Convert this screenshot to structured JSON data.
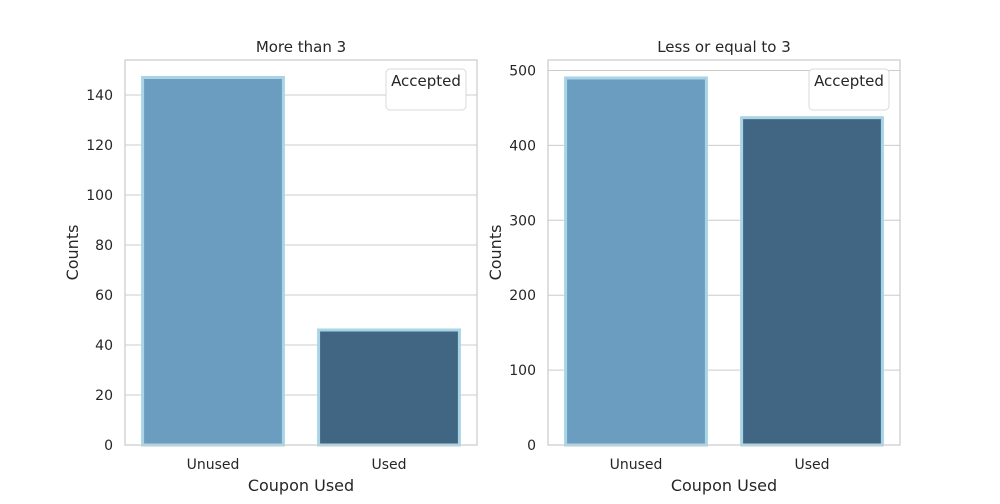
{
  "chart_data": [
    {
      "type": "bar",
      "title": "More than 3",
      "xlabel": "Coupon Used",
      "ylabel": "Counts",
      "categories": [
        "Unused",
        "Used"
      ],
      "values": [
        147,
        46
      ],
      "ylim": [
        0,
        154
      ],
      "yticks": [
        0,
        20,
        40,
        60,
        80,
        100,
        120,
        140
      ],
      "grid": true,
      "legend": {
        "title": "Accepted",
        "placement": "top-right"
      },
      "colors": [
        "#6a9dc0",
        "#406683"
      ],
      "edge_color": "#a8d4e6"
    },
    {
      "type": "bar",
      "title": "Less or equal to 3",
      "xlabel": "Coupon Used",
      "ylabel": "Counts",
      "categories": [
        "Unused",
        "Used"
      ],
      "values": [
        490,
        437
      ],
      "ylim": [
        0,
        514
      ],
      "yticks": [
        0,
        100,
        200,
        300,
        400,
        500
      ],
      "grid": true,
      "legend": {
        "title": "Accepted",
        "placement": "top-right"
      },
      "colors": [
        "#6a9dc0",
        "#406683"
      ],
      "edge_color": "#a8d4e6"
    }
  ]
}
